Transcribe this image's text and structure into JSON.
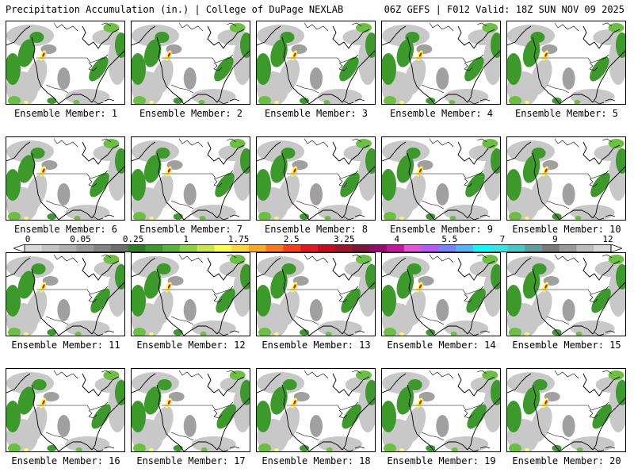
{
  "header": {
    "left_title": "Precipitation Accumulation (in.) | College of DuPage NEXLAB",
    "right_title": "06Z GEFS | F012 Valid: 18Z SUN NOV 09 2025"
  },
  "members": [
    "Ensemble Member: 1",
    "Ensemble Member: 2",
    "Ensemble Member: 3",
    "Ensemble Member: 4",
    "Ensemble Member: 5",
    "Ensemble Member: 6",
    "Ensemble Member: 7",
    "Ensemble Member: 8",
    "Ensemble Member: 9",
    "Ensemble Member: 10",
    "Ensemble Member: 11",
    "Ensemble Member: 12",
    "Ensemble Member: 13",
    "Ensemble Member: 14",
    "Ensemble Member: 15",
    "Ensemble Member: 16",
    "Ensemble Member: 17",
    "Ensemble Member: 18",
    "Ensemble Member: 19",
    "Ensemble Member: 20"
  ],
  "legend": {
    "tick_labels": [
      "0",
      "0.05",
      "0.25",
      "1",
      "1.75",
      "2.5",
      "3.25",
      "4",
      "5.5",
      "7",
      "9",
      "12"
    ],
    "colors": [
      "#d8d8d8",
      "#c4c4c4",
      "#b0b0b0",
      "#9a9a9a",
      "#848484",
      "#6e6e6e",
      "#2e7d22",
      "#3c9a2a",
      "#56b830",
      "#8cd23c",
      "#c8e646",
      "#ffff46",
      "#ffd732",
      "#ffaa1e",
      "#ff7814",
      "#ff3c14",
      "#e6141e",
      "#c80a1e",
      "#a01428",
      "#7d143c",
      "#960a6e",
      "#c814a0",
      "#e650dc",
      "#b45aff",
      "#7882ff",
      "#50b4ff",
      "#00ffff",
      "#32e6e6",
      "#46c8c8",
      "#5aa0a0",
      "#7a7a7a",
      "#9a9a9a",
      "#bcbcbc",
      "#d8d8d8"
    ]
  },
  "colors": {
    "land_gray": "#c8c8c8",
    "dark_gray": "#a0a0a0",
    "green": "#3c9a2a",
    "light_green": "#6cc040",
    "yellow": "#ffff46",
    "red": "#e6141e"
  }
}
